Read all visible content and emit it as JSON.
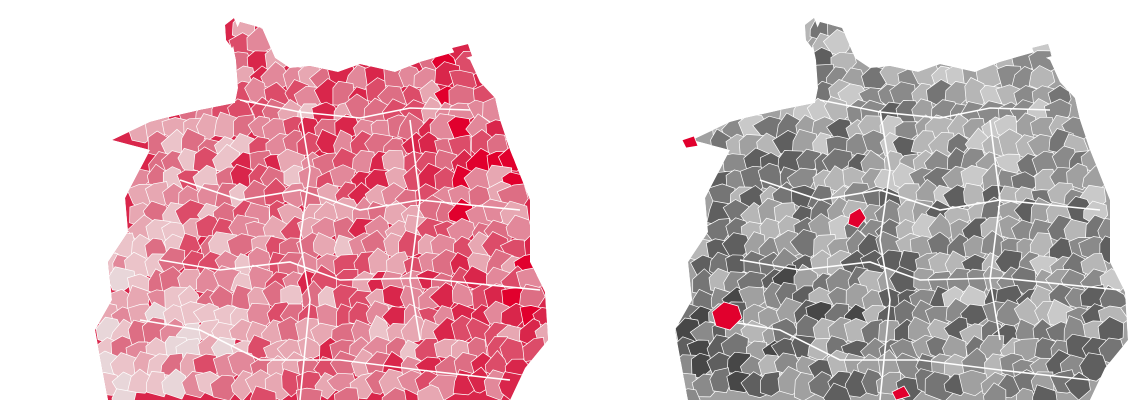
{
  "maps": [
    {
      "id": "left",
      "theme": "red",
      "palette": [
        "#e8d6d9",
        "#ebc3c9",
        "#e7a7b2",
        "#e2889a",
        "#dd6e84",
        "#dc4c69",
        "#d9264b",
        "#e1002d"
      ],
      "region_fill": "#d9264b",
      "highlighted_regions": []
    },
    {
      "id": "right",
      "theme": "gray",
      "palette": [
        "#d7d7d7",
        "#c9c9c9",
        "#b6b6b6",
        "#a0a0a0",
        "#8a8a8a",
        "#757575",
        "#5f5f5f",
        "#474747"
      ],
      "region_fill": "#a0a0a0",
      "highlight_color": "#e1002d",
      "highlighted_regions": [
        "berlin-region",
        "frankfurt-region",
        "munich-region",
        "coastal-region"
      ]
    }
  ]
}
